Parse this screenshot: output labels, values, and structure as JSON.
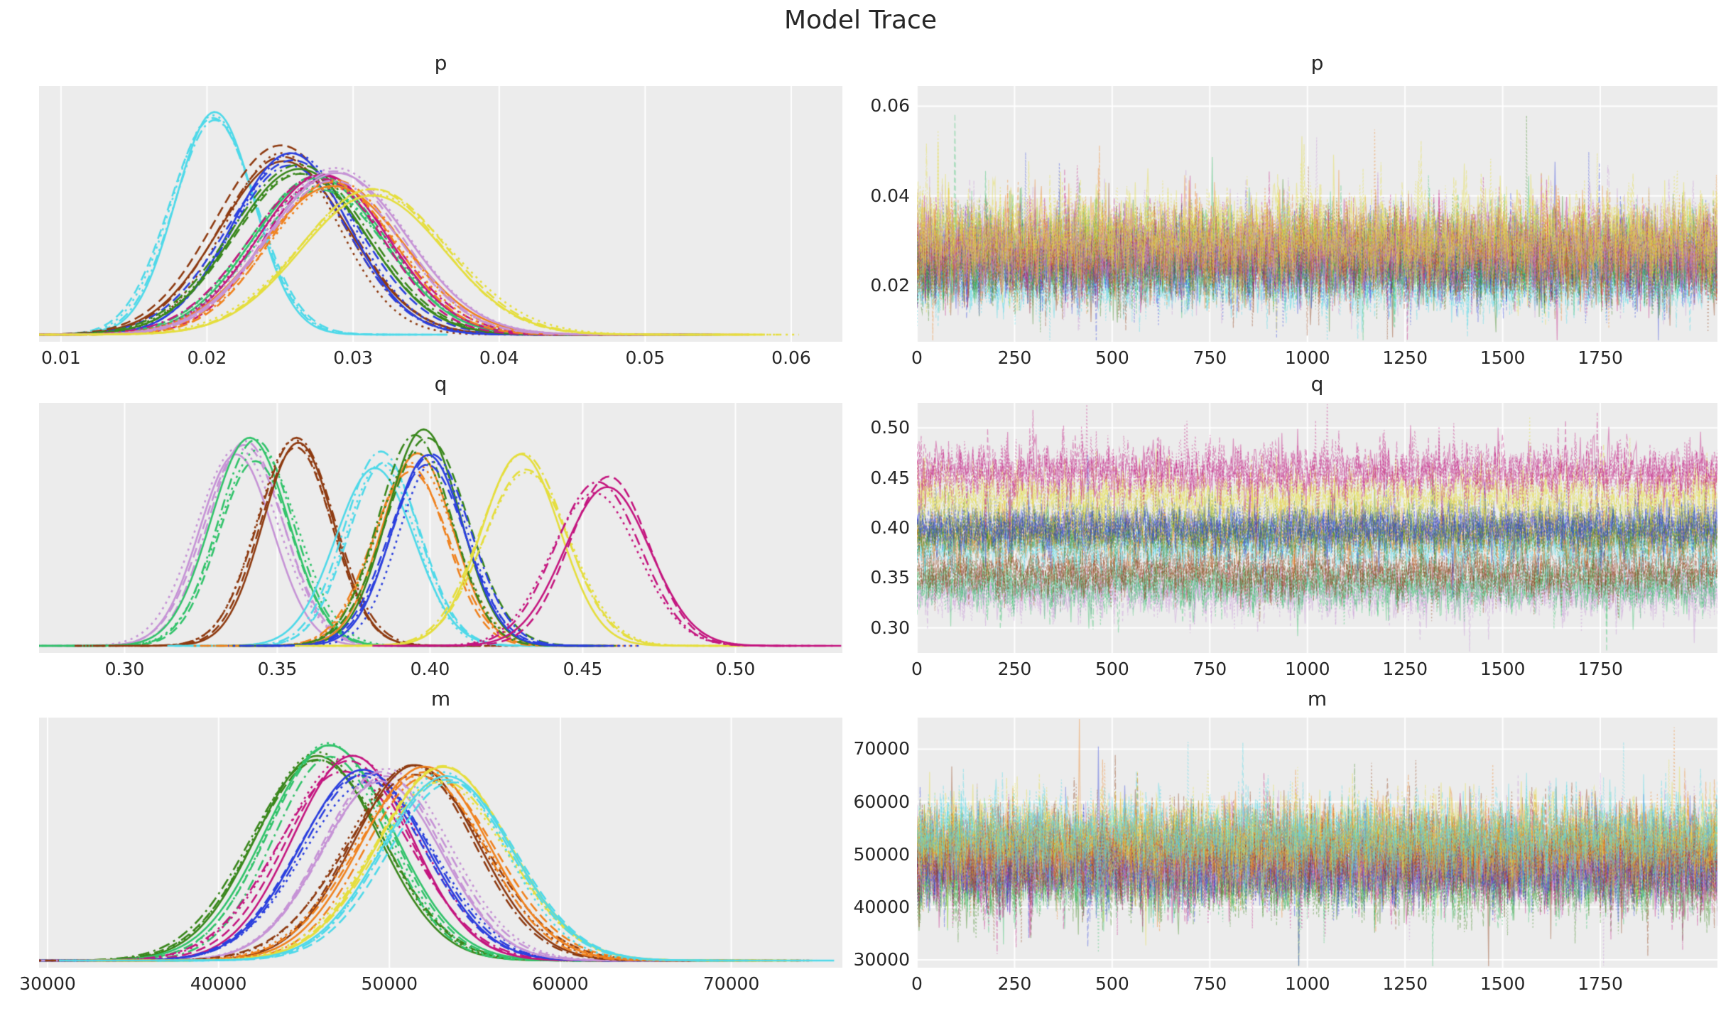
{
  "figure": {
    "title": "Model Trace",
    "background_color": "#ffffff",
    "panel_color": "#ececec",
    "grid_color": "#ffffff",
    "text_color": "#262626"
  },
  "chart_data": {
    "type": "line",
    "subtype": "mcmc-trace-grid",
    "suptitle": "Model Trace",
    "columns": [
      "density",
      "trace"
    ],
    "grid": "on",
    "legend": "none",
    "chain_linestyles": [
      "solid",
      "dashed",
      "dotted",
      "dashdot"
    ],
    "palette": {
      "cyan": "#4ED9E9",
      "brown": "#8E3A10",
      "blue": "#2B3FDE",
      "darkgreen": "#39871C",
      "seagreen": "#31C36A",
      "magenta": "#C4157F",
      "orange": "#F0821E",
      "violet": "#C693D6",
      "yellow": "#E5DE3D"
    },
    "rows": [
      {
        "param": "p",
        "kde": {
          "xlim": [
            0.0085,
            0.0635
          ],
          "xtick_vals": [
            0.01,
            0.02,
            0.03,
            0.04,
            0.05,
            0.06
          ],
          "xtick_labels": [
            "0.01",
            "0.02",
            "0.03",
            "0.04",
            "0.05",
            "0.06"
          ]
        },
        "trace": {
          "xlim": [
            0,
            2050
          ],
          "xtick_vals": [
            0,
            250,
            500,
            750,
            1000,
            1250,
            1500,
            1750
          ],
          "xtick_labels": [
            "0",
            "250",
            "500",
            "750",
            "1000",
            "1250",
            "1500",
            "1750"
          ],
          "ylim": [
            0.0075,
            0.0645
          ],
          "ytick_vals": [
            0.02,
            0.04,
            0.06
          ],
          "ytick_labels": [
            "0.02",
            "0.04",
            "0.06"
          ],
          "n_draws": 2000
        },
        "series": [
          {
            "name": "cyan",
            "color": "#4ED9E9",
            "mean": 0.0205,
            "sd": 0.0029,
            "peak": 0.97
          },
          {
            "name": "brown",
            "color": "#8E3A10",
            "mean": 0.0252,
            "sd": 0.0042,
            "peak": 0.8
          },
          {
            "name": "blue",
            "color": "#2B3FDE",
            "mean": 0.0258,
            "sd": 0.0043,
            "peak": 0.76
          },
          {
            "name": "darkgreen",
            "color": "#39871C",
            "mean": 0.0263,
            "sd": 0.0044,
            "peak": 0.72
          },
          {
            "name": "seagreen",
            "color": "#31C36A",
            "mean": 0.0276,
            "sd": 0.0045,
            "peak": 0.66
          },
          {
            "name": "magenta",
            "color": "#C4157F",
            "mean": 0.0279,
            "sd": 0.0045,
            "peak": 0.67
          },
          {
            "name": "orange",
            "color": "#F0821E",
            "mean": 0.0286,
            "sd": 0.0046,
            "peak": 0.65
          },
          {
            "name": "violet",
            "color": "#C693D6",
            "mean": 0.0288,
            "sd": 0.0047,
            "peak": 0.69
          },
          {
            "name": "yellow",
            "color": "#E5DE3D",
            "mean": 0.0314,
            "sd": 0.0051,
            "peak": 0.62
          }
        ]
      },
      {
        "param": "q",
        "kde": {
          "xlim": [
            0.272,
            0.535
          ],
          "xtick_vals": [
            0.3,
            0.35,
            0.4,
            0.45,
            0.5
          ],
          "xtick_labels": [
            "0.30",
            "0.35",
            "0.40",
            "0.45",
            "0.50"
          ]
        },
        "trace": {
          "xlim": [
            0,
            2050
          ],
          "xtick_vals": [
            0,
            250,
            500,
            750,
            1000,
            1250,
            1500,
            1750
          ],
          "xtick_labels": [
            "0",
            "250",
            "500",
            "750",
            "1000",
            "1250",
            "1500",
            "1750"
          ],
          "ylim": [
            0.275,
            0.525
          ],
          "ytick_vals": [
            0.3,
            0.35,
            0.4,
            0.45,
            0.5
          ],
          "ytick_labels": [
            "0.30",
            "0.35",
            "0.40",
            "0.45",
            "0.50"
          ],
          "n_draws": 2000
        },
        "series": [
          {
            "name": "violet",
            "color": "#C693D6",
            "mean": 0.338,
            "sd": 0.0125,
            "peak": 0.9
          },
          {
            "name": "seagreen",
            "color": "#31C36A",
            "mean": 0.343,
            "sd": 0.0125,
            "peak": 0.88
          },
          {
            "name": "brown",
            "color": "#8E3A10",
            "mean": 0.356,
            "sd": 0.0125,
            "peak": 0.9
          },
          {
            "name": "cyan",
            "color": "#4ED9E9",
            "mean": 0.384,
            "sd": 0.012,
            "peak": 0.83
          },
          {
            "name": "orange",
            "color": "#F0821E",
            "mean": 0.394,
            "sd": 0.0125,
            "peak": 0.82
          },
          {
            "name": "darkgreen",
            "color": "#39871C",
            "mean": 0.397,
            "sd": 0.0125,
            "peak": 0.92
          },
          {
            "name": "blue",
            "color": "#2B3FDE",
            "mean": 0.401,
            "sd": 0.012,
            "peak": 0.84
          },
          {
            "name": "yellow",
            "color": "#E5DE3D",
            "mean": 0.43,
            "sd": 0.0135,
            "peak": 0.82
          },
          {
            "name": "magenta",
            "color": "#C4157F",
            "mean": 0.456,
            "sd": 0.014,
            "peak": 0.72
          }
        ]
      },
      {
        "param": "m",
        "kde": {
          "xlim": [
            29500,
            76500
          ],
          "xtick_vals": [
            30000,
            40000,
            50000,
            60000,
            70000
          ],
          "xtick_labels": [
            "30000",
            "40000",
            "50000",
            "60000",
            "70000"
          ]
        },
        "trace": {
          "xlim": [
            0,
            2050
          ],
          "xtick_vals": [
            0,
            250,
            500,
            750,
            1000,
            1250,
            1500,
            1750
          ],
          "xtick_labels": [
            "0",
            "250",
            "500",
            "750",
            "1000",
            "1250",
            "1500",
            "1750"
          ],
          "ylim": [
            28500,
            76000
          ],
          "ytick_vals": [
            30000,
            40000,
            50000,
            60000,
            70000
          ],
          "ytick_labels": [
            "30000",
            "40000",
            "50000",
            "60000",
            "70000"
          ],
          "n_draws": 2000
        },
        "series": [
          {
            "name": "darkgreen",
            "color": "#39871C",
            "mean": 46000,
            "sd": 3600,
            "peak": 0.92
          },
          {
            "name": "seagreen",
            "color": "#31C36A",
            "mean": 46600,
            "sd": 3600,
            "peak": 0.95
          },
          {
            "name": "magenta",
            "color": "#C4157F",
            "mean": 47600,
            "sd": 3700,
            "peak": 0.88
          },
          {
            "name": "blue",
            "color": "#2B3FDE",
            "mean": 48600,
            "sd": 3700,
            "peak": 0.85
          },
          {
            "name": "violet",
            "color": "#C693D6",
            "mean": 49800,
            "sd": 3800,
            "peak": 0.83
          },
          {
            "name": "brown",
            "color": "#8E3A10",
            "mean": 51400,
            "sd": 3800,
            "peak": 0.88
          },
          {
            "name": "orange",
            "color": "#F0821E",
            "mean": 51900,
            "sd": 3800,
            "peak": 0.86
          },
          {
            "name": "yellow",
            "color": "#E5DE3D",
            "mean": 52900,
            "sd": 3900,
            "peak": 0.84
          },
          {
            "name": "cyan",
            "color": "#4ED9E9",
            "mean": 53400,
            "sd": 3700,
            "peak": 0.83
          }
        ]
      }
    ]
  }
}
